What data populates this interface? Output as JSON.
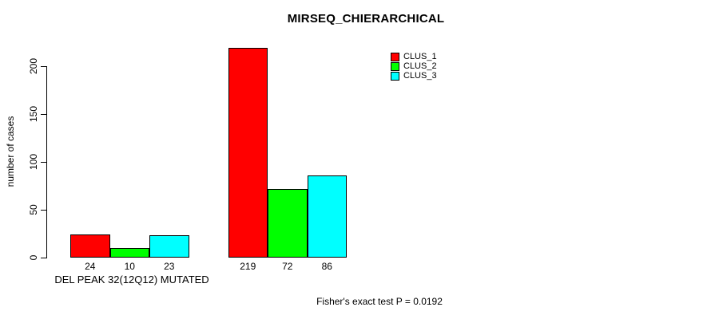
{
  "chart_data": {
    "type": "bar",
    "title": "MIRSEQ_CHIERARCHICAL",
    "ylabel": "number of cases",
    "xlabel": "DEL PEAK 32(12Q12) MUTATED",
    "yticks": [
      0,
      50,
      100,
      150,
      200
    ],
    "ylim": [
      0,
      220
    ],
    "grid": false,
    "bar_value_labels": true,
    "legend_position": "top-right",
    "categories": [
      "DEL PEAK 32(12Q12) MUTATED",
      ""
    ],
    "series": [
      {
        "name": "CLUS_1",
        "color": "#FF0000",
        "values": [
          24,
          219
        ]
      },
      {
        "name": "CLUS_2",
        "color": "#00FF00",
        "values": [
          10,
          72
        ]
      },
      {
        "name": "CLUS_3",
        "color": "#00FFFF",
        "values": [
          23,
          86
        ]
      }
    ],
    "footer": "Fisher's exact test P = 0.0192",
    "axis_color": "#000000",
    "background_color": "#FFFFFF"
  }
}
